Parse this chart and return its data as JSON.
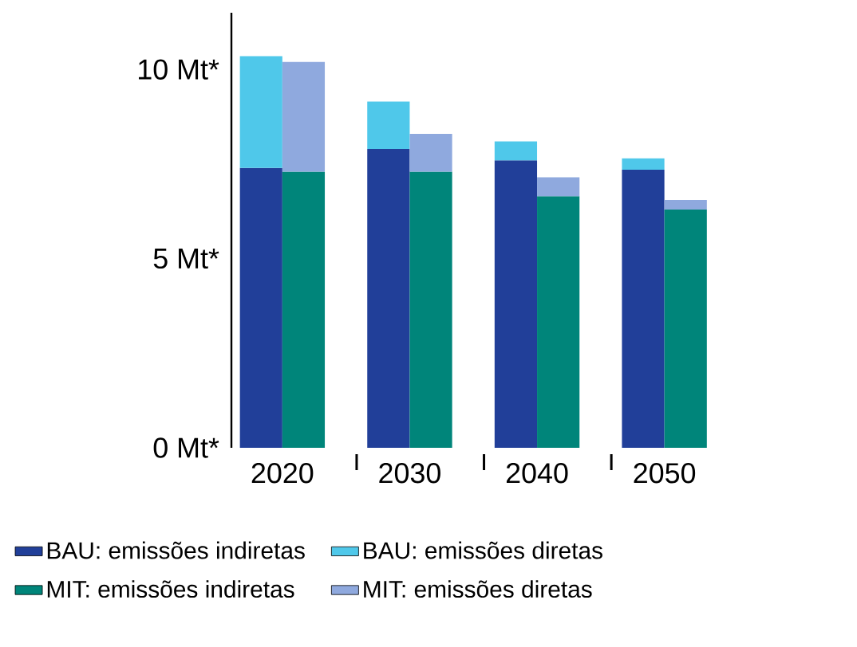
{
  "chart_data": {
    "type": "bar",
    "stacked": true,
    "categories": [
      null,
      "2020",
      null,
      null,
      null,
      null,
      null,
      "2030",
      null,
      null,
      null,
      null,
      null,
      "2040",
      null,
      null,
      null,
      null,
      null,
      "2050",
      null
    ],
    "ylim": [
      0,
      11.5
    ],
    "yticks": [
      {
        "value": 0,
        "label": "0 Mt*"
      },
      {
        "value": 5,
        "label": "5 Mt*"
      },
      {
        "value": 10,
        "label": "10 Mt*"
      }
    ],
    "legend": "bottom",
    "series": [
      {
        "name": "BAU: emissões indiretas",
        "color": "#213f99",
        "values": [
          7.4,
          null,
          null,
          null,
          null,
          null,
          7.9,
          null,
          null,
          null,
          null,
          null,
          7.6,
          null,
          null,
          null,
          null,
          null,
          7.35,
          null,
          null
        ]
      },
      {
        "name": "BAU: emissões diretas",
        "color": "#4fc8ea",
        "values": [
          2.95,
          null,
          null,
          null,
          null,
          null,
          1.25,
          null,
          null,
          null,
          null,
          null,
          0.5,
          null,
          null,
          null,
          null,
          null,
          0.3,
          null,
          null
        ]
      },
      {
        "name": "MIT: emissões indiretas",
        "color": "#00857a",
        "values": [
          null,
          null,
          7.3,
          null,
          null,
          null,
          null,
          null,
          7.3,
          null,
          null,
          null,
          null,
          null,
          6.65,
          null,
          null,
          null,
          null,
          null,
          6.3
        ]
      },
      {
        "name": "MIT: emissões diretas",
        "color": "#8fa9de",
        "values": [
          null,
          null,
          2.9,
          null,
          null,
          null,
          null,
          null,
          1.0,
          null,
          null,
          null,
          null,
          null,
          0.5,
          null,
          null,
          null,
          null,
          null,
          0.25
        ]
      }
    ]
  }
}
